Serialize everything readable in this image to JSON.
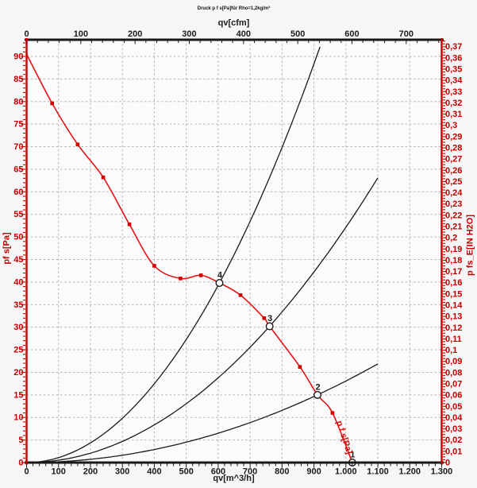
{
  "chart_data": {
    "type": "line",
    "title": "Druck p f s[Pa]für Rho=1,2kg/m³",
    "plot_bg": "#fbfbfb",
    "grid": {
      "color": "#b3b3b3",
      "dash": "2.5,2.8"
    },
    "axes": {
      "bottom": {
        "label": "qv[m^3/h]",
        "min": 0,
        "max": 1300,
        "major": 100,
        "minor": 20,
        "tick_labels": [
          "0",
          "100",
          "200",
          "300",
          "400",
          "500",
          "600",
          "700",
          "800",
          "900",
          "1.000",
          "1.100",
          "1.200",
          "1.300"
        ],
        "color": "#1a1a1a"
      },
      "top": {
        "label": "qv[cfm]",
        "min": 0,
        "max": 765.4,
        "major": 100,
        "minor": 20,
        "tick_labels": [
          "0",
          "100",
          "200",
          "300",
          "400",
          "500",
          "600",
          "700"
        ],
        "color": "#1a1a1a"
      },
      "left": {
        "label": "pf s[Pa]",
        "min": 0,
        "max": 93.7,
        "major": 5,
        "minor": 1,
        "color": "#c00000"
      },
      "right": {
        "label": "p fs_E[IN H2O]",
        "min": 0,
        "max": 0.376,
        "major": 0.01,
        "minor": 0.0025,
        "pa_per_in_h2o": 249.08,
        "color": "#c00000"
      }
    },
    "fan_curve": {
      "name": "p f s[Pa]",
      "color": "#e31414",
      "marker_color": "#d40000",
      "points": [
        [
          0,
          90.5
        ],
        [
          80,
          79.6
        ],
        [
          160,
          70.5
        ],
        [
          240,
          63.2
        ],
        [
          322,
          52.8
        ],
        [
          400,
          43.6
        ],
        [
          482,
          40.8
        ],
        [
          546,
          41.5
        ],
        [
          604,
          39.8
        ],
        [
          670,
          37.1
        ],
        [
          744,
          32.0
        ],
        [
          761,
          30.2
        ],
        [
          856,
          21.2
        ],
        [
          911,
          15.0
        ],
        [
          958,
          11.0
        ],
        [
          1020,
          0
        ]
      ],
      "marker_points": [
        [
          80,
          79.6
        ],
        [
          160,
          70.5
        ],
        [
          240,
          63.2
        ],
        [
          322,
          52.8
        ],
        [
          400,
          43.6
        ],
        [
          482,
          40.8
        ],
        [
          546,
          41.5
        ],
        [
          670,
          37.1
        ],
        [
          744,
          32.0
        ],
        [
          856,
          21.2
        ],
        [
          958,
          11.0
        ]
      ],
      "label": {
        "text": "p f s[Pa]",
        "rotation": 72
      }
    },
    "system_curves": [
      {
        "name": "system-curve-1",
        "k": 1.8074e-05,
        "qmax": 1100
      },
      {
        "name": "system-curve-2",
        "k": 5.2147e-05,
        "qmax": 1100
      },
      {
        "name": "system-curve-3",
        "k": 0.00010909,
        "qmax": 919
      }
    ],
    "operating_points": [
      {
        "label": "1",
        "q": 1020,
        "p": 0
      },
      {
        "label": "2",
        "q": 911,
        "p": 15.0
      },
      {
        "label": "3",
        "q": 761,
        "p": 30.2
      },
      {
        "label": "4",
        "q": 604,
        "p": 39.8
      }
    ]
  }
}
